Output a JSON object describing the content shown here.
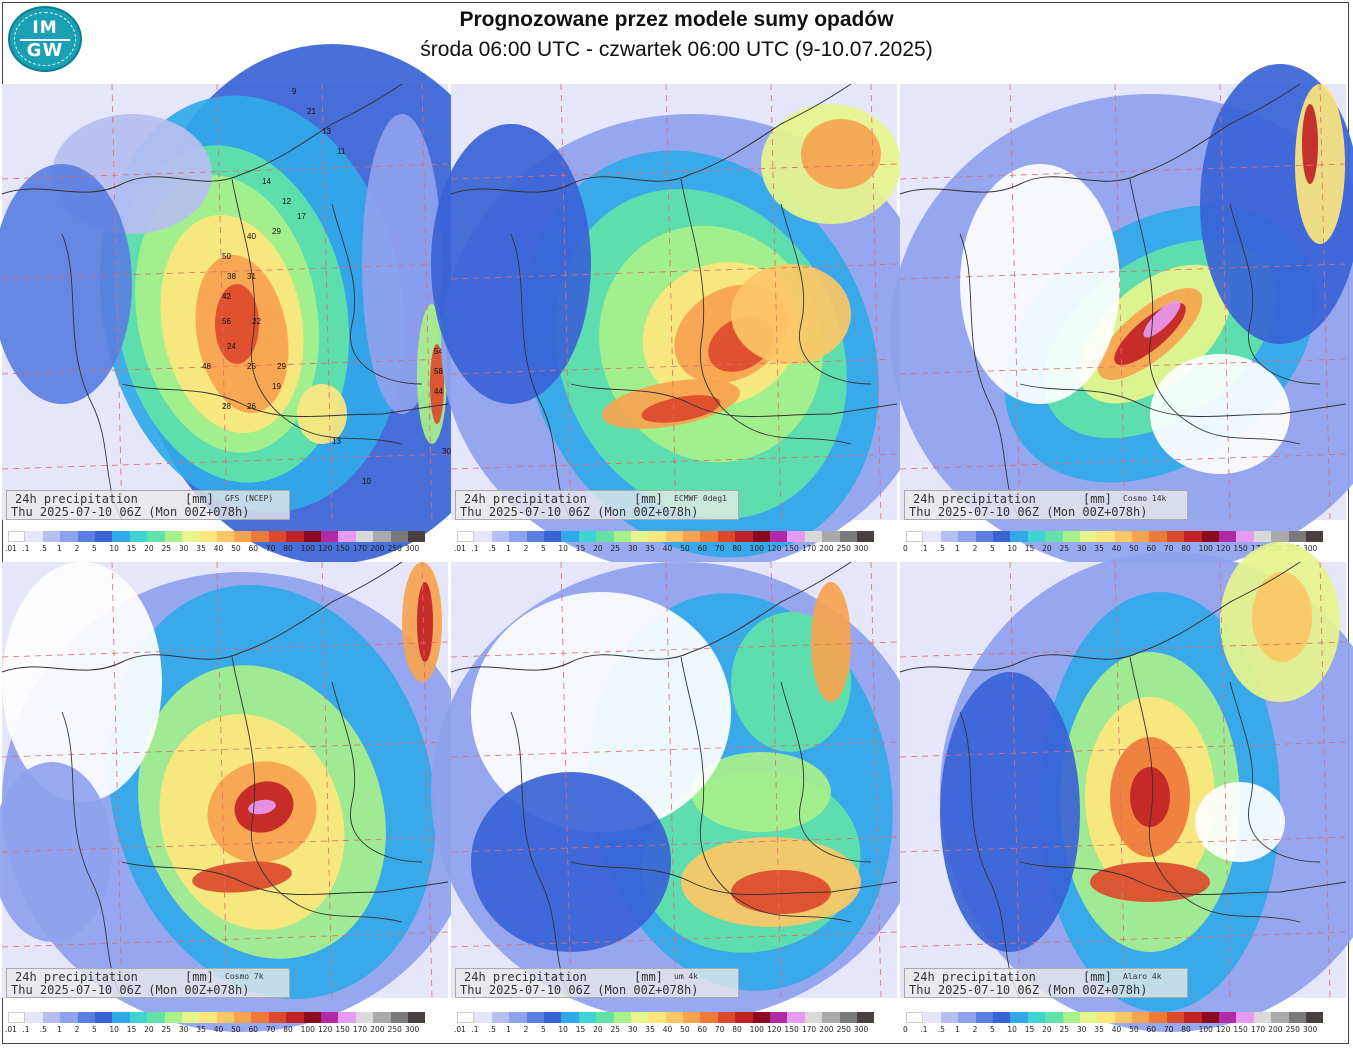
{
  "header": {
    "title": "Prognozowane przez modele sumy opadów",
    "subtitle": "środa 06:00 UTC - czwartek 06:00 UTC (9-10.07.2025)",
    "logo_top": "IM",
    "logo_bottom": "GW"
  },
  "panels": [
    {
      "label": "24h precipitation",
      "unit": "[mm]",
      "model": "GFS (NCEP)",
      "valid": "Thu 2025-07-10 06Z (Mon 00Z+078h)"
    },
    {
      "label": "24h precipitation",
      "unit": "[mm]",
      "model": "ECMWF 0deg1",
      "valid": "Thu 2025-07-10 06Z (Mon 00Z+078h)"
    },
    {
      "label": "24h precipitation",
      "unit": "[mm]",
      "model": "Cosmo 14k",
      "valid": "Thu 2025-07-10 06Z (Mon 00Z+078h)"
    },
    {
      "label": "24h precipitation",
      "unit": "[mm]",
      "model": "Cosmo 7k",
      "valid": "Thu 2025-07-10 06Z (Mon 00Z+078h)"
    },
    {
      "label": "24h precipitation",
      "unit": "[mm]",
      "model": "um 4k",
      "valid": "Thu 2025-07-10 06Z (Mon 00Z+078h)"
    },
    {
      "label": "24h precipitation",
      "unit": "[mm]",
      "model": "Alaro 4k",
      "valid": "Thu 2025-07-10 06Z (Mon 00Z+078h)"
    }
  ],
  "legend": {
    "ticks_a": [
      ".01",
      ".1",
      ".5",
      "1",
      "2",
      "5",
      "10",
      "15",
      "20",
      "25",
      "30",
      "35",
      "40",
      "50",
      "60",
      "70",
      "80",
      "100",
      "120",
      "150",
      "170",
      "200",
      "250",
      "300"
    ],
    "ticks_b": [
      "0",
      ".1",
      ".5",
      "1",
      "2",
      "5",
      "10",
      "15",
      "20",
      "25",
      "30",
      "35",
      "40",
      "50",
      "60",
      "70",
      "80",
      "100",
      "120",
      "150",
      "170",
      "200",
      "250",
      "300"
    ],
    "colors": [
      "#ffffff",
      "#e6e6fa",
      "#b7bff0",
      "#8fa2ee",
      "#5b7fe0",
      "#3a63d6",
      "#31a9e8",
      "#3fd3d3",
      "#62e2a8",
      "#a8f08a",
      "#e6f58c",
      "#fde67e",
      "#fcc766",
      "#f7a34f",
      "#ee7a3a",
      "#dc4a2c",
      "#c12226",
      "#8b0a1e",
      "#b02aa5",
      "#e79af0",
      "#d9d9d9",
      "#aaaaaa",
      "#7a7a7a",
      "#4a3f3f"
    ]
  },
  "gfs_numbers": [
    {
      "v": "9"
    },
    {
      "v": "21"
    },
    {
      "v": "13"
    },
    {
      "v": "11"
    },
    {
      "v": "14"
    },
    {
      "v": "12"
    },
    {
      "v": "17"
    },
    {
      "v": "40"
    },
    {
      "v": "29"
    },
    {
      "v": "50"
    },
    {
      "v": "38"
    },
    {
      "v": "31"
    },
    {
      "v": "42"
    },
    {
      "v": "56"
    },
    {
      "v": "22"
    },
    {
      "v": "24"
    },
    {
      "v": "48"
    },
    {
      "v": "25"
    },
    {
      "v": "29"
    },
    {
      "v": "19"
    },
    {
      "v": "26"
    },
    {
      "v": "28"
    },
    {
      "v": "54"
    },
    {
      "v": "58"
    },
    {
      "v": "44"
    },
    {
      "v": "30"
    },
    {
      "v": "13"
    },
    {
      "v": "10"
    }
  ]
}
